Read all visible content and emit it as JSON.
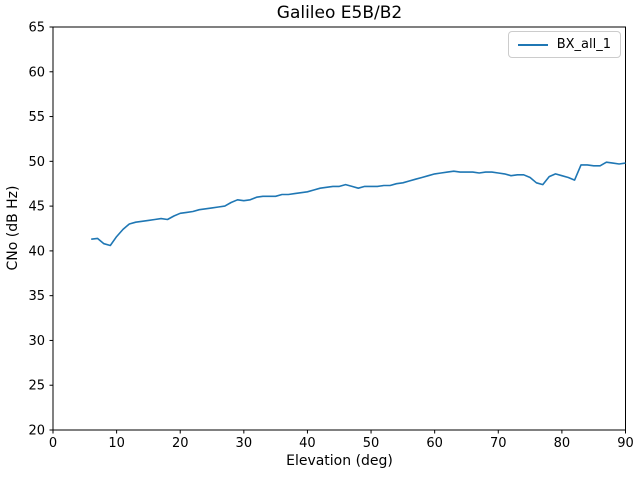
{
  "chart_data": {
    "type": "line",
    "title": "Galileo E5B/B2",
    "xlabel": "Elevation (deg)",
    "ylabel": "CNo (dB Hz)",
    "xlim": [
      0,
      90
    ],
    "ylim": [
      20,
      65
    ],
    "xticks": [
      0,
      10,
      20,
      30,
      40,
      50,
      60,
      70,
      80,
      90
    ],
    "yticks": [
      20,
      25,
      30,
      35,
      40,
      45,
      50,
      55,
      60,
      65
    ],
    "grid": false,
    "background_color": "#ffffff",
    "spine_color": "#000000",
    "legend": {
      "position": "upper right",
      "entries": [
        {
          "label": "BX_all_1",
          "color": "#1f77b4"
        }
      ]
    },
    "series": [
      {
        "name": "BX_all_1",
        "color": "#1f77b4",
        "x": [
          6,
          7,
          8,
          9,
          10,
          11,
          12,
          13,
          14,
          15,
          16,
          17,
          18,
          19,
          20,
          21,
          22,
          23,
          24,
          25,
          26,
          27,
          28,
          29,
          30,
          31,
          32,
          33,
          34,
          35,
          36,
          37,
          38,
          39,
          40,
          41,
          42,
          43,
          44,
          45,
          46,
          47,
          48,
          49,
          50,
          51,
          52,
          53,
          54,
          55,
          56,
          57,
          58,
          59,
          60,
          61,
          62,
          63,
          64,
          65,
          66,
          67,
          68,
          69,
          70,
          71,
          72,
          73,
          74,
          75,
          76,
          77,
          78,
          79,
          80,
          81,
          82,
          83,
          84,
          85,
          86,
          87,
          88,
          89,
          90
        ],
        "y": [
          41.3,
          41.4,
          40.8,
          40.6,
          41.6,
          42.4,
          43.0,
          43.2,
          43.3,
          43.4,
          43.5,
          43.6,
          43.5,
          43.9,
          44.2,
          44.3,
          44.4,
          44.6,
          44.7,
          44.8,
          44.9,
          45.0,
          45.4,
          45.7,
          45.6,
          45.7,
          46.0,
          46.1,
          46.1,
          46.1,
          46.3,
          46.3,
          46.4,
          46.5,
          46.6,
          46.8,
          47.0,
          47.1,
          47.2,
          47.2,
          47.4,
          47.2,
          47.0,
          47.2,
          47.2,
          47.2,
          47.3,
          47.3,
          47.5,
          47.6,
          47.8,
          48.0,
          48.2,
          48.4,
          48.6,
          48.7,
          48.8,
          48.9,
          48.8,
          48.8,
          48.8,
          48.7,
          48.8,
          48.8,
          48.7,
          48.6,
          48.4,
          48.5,
          48.5,
          48.2,
          47.6,
          47.4,
          48.3,
          48.6,
          48.4,
          48.2,
          47.9,
          49.6,
          49.6,
          49.5,
          49.5,
          49.9,
          49.8,
          49.7,
          49.8
        ]
      }
    ]
  }
}
